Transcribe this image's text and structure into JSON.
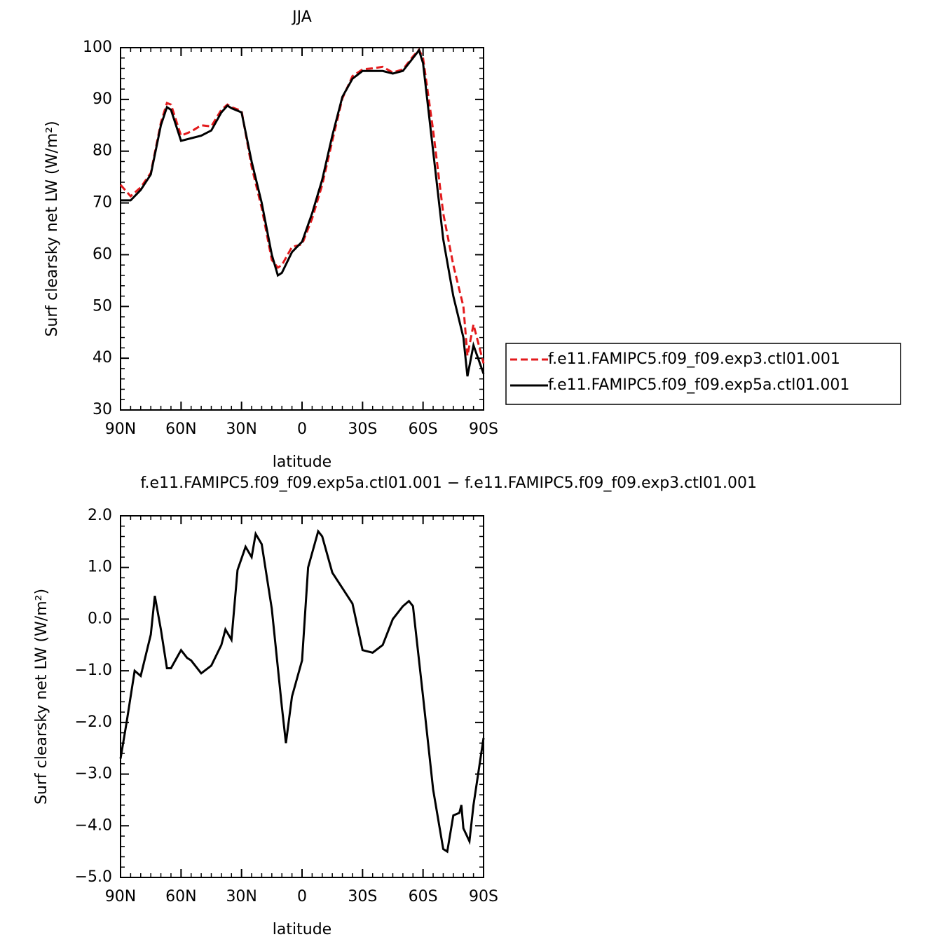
{
  "chart_data": [
    {
      "type": "line",
      "title": "JJA",
      "xlabel": "latitude",
      "ylabel": "Surf clearsky net LW (W/m²)",
      "x": [
        90,
        85,
        80,
        75,
        70,
        67,
        65,
        60,
        55,
        50,
        45,
        40,
        37,
        35,
        30,
        25,
        20,
        15,
        12,
        10,
        5,
        0,
        -5,
        -10,
        -15,
        -20,
        -25,
        -30,
        -35,
        -40,
        -45,
        -50,
        -55,
        -58,
        -60,
        -65,
        -70,
        -75,
        -80,
        -82,
        -85,
        -90
      ],
      "series": [
        {
          "name": "f.e11.FAMIPC5.f09_f09.exp3.ctl01.001",
          "color": "#e31a1c",
          "dash": true,
          "values": [
            73.5,
            71.3,
            73,
            75.8,
            85.5,
            89.3,
            89,
            83,
            83.8,
            85,
            84.8,
            88,
            89,
            88.5,
            87.8,
            77,
            69,
            59,
            57.5,
            58,
            61.5,
            62,
            67,
            73.5,
            82,
            90.2,
            94.5,
            95.8,
            96,
            96.3,
            95.2,
            95.8,
            98.3,
            99.6,
            98,
            84,
            68,
            58,
            50,
            40.5,
            46.5,
            39
          ]
        },
        {
          "name": "f.e11.FAMIPC5.f09_f09.exp5a.ctl01.001",
          "color": "#000000",
          "dash": false,
          "values": [
            70.5,
            70.5,
            72.5,
            75.5,
            85,
            88.5,
            88,
            82,
            82.5,
            83,
            84,
            87.5,
            88.8,
            88.3,
            87.5,
            78,
            70,
            60,
            56,
            56.5,
            60.5,
            62.5,
            68,
            74.5,
            83,
            90.5,
            94,
            95.5,
            95.5,
            95.5,
            95,
            95.5,
            98,
            99.5,
            97,
            80,
            63,
            52,
            44,
            36.5,
            42.5,
            37
          ]
        }
      ],
      "xlim": [
        90,
        -90
      ],
      "ylim": [
        30,
        100
      ],
      "xticks": [
        {
          "value": 90,
          "label": "90N"
        },
        {
          "value": 60,
          "label": "60N"
        },
        {
          "value": 30,
          "label": "30N"
        },
        0,
        {
          "value": -30,
          "label": "30S"
        },
        {
          "value": -60,
          "label": "60S"
        },
        {
          "value": -90,
          "label": "90S"
        }
      ],
      "yticks": [
        30,
        40,
        50,
        60,
        70,
        80,
        90,
        100
      ],
      "legend": "outside-right"
    },
    {
      "type": "line",
      "title": "f.e11.FAMIPC5.f09_f09.exp5a.ctl01.001 − f.e11.FAMIPC5.f09_f09.exp3.ctl01.001",
      "xlabel": "latitude",
      "ylabel": "Surf clearsky net LW (W/m²)",
      "x": [
        90,
        87,
        83,
        80,
        75,
        73,
        70,
        67,
        65,
        60,
        57,
        55,
        50,
        45,
        40,
        38,
        35,
        32,
        28,
        25,
        23,
        20,
        15,
        10,
        8,
        5,
        0,
        -3,
        -8,
        -10,
        -15,
        -20,
        -25,
        -30,
        -35,
        -40,
        -45,
        -50,
        -53,
        -55,
        -60,
        -65,
        -70,
        -72,
        -75,
        -78,
        -79,
        -80,
        -83,
        -85,
        -90
      ],
      "series": [
        {
          "color": "#000000",
          "dash": false,
          "values": [
            -2.7,
            -2.0,
            -1.0,
            -1.1,
            -0.3,
            0.45,
            -0.2,
            -0.95,
            -0.95,
            -0.6,
            -0.75,
            -0.8,
            -1.05,
            -0.9,
            -0.5,
            -0.2,
            -0.4,
            0.95,
            1.4,
            1.2,
            1.65,
            1.45,
            0.2,
            -1.7,
            -2.4,
            -1.5,
            -0.8,
            1.0,
            1.7,
            1.6,
            0.9,
            0.6,
            0.3,
            -0.6,
            -0.65,
            -0.5,
            0.0,
            0.25,
            0.35,
            0.25,
            -1.5,
            -3.3,
            -4.45,
            -4.5,
            -3.8,
            -3.75,
            -3.6,
            -4.05,
            -4.3,
            -3.6,
            -2.3
          ]
        }
      ],
      "xlim": [
        90,
        -90
      ],
      "ylim": [
        -5,
        2
      ],
      "xticks": [
        {
          "value": 90,
          "label": "90N"
        },
        {
          "value": 60,
          "label": "60N"
        },
        {
          "value": 30,
          "label": "30N"
        },
        0,
        {
          "value": -30,
          "label": "30S"
        },
        {
          "value": -60,
          "label": "60S"
        },
        {
          "value": -90,
          "label": "90S"
        }
      ],
      "yticks": [
        {
          "value": -5,
          "label": "−5.0"
        },
        {
          "value": -4,
          "label": "−4.0"
        },
        {
          "value": -3,
          "label": "−3.0"
        },
        {
          "value": -2,
          "label": "−2.0"
        },
        {
          "value": -1,
          "label": "−1.0"
        },
        {
          "value": 0,
          "label": "0.0"
        },
        {
          "value": 1,
          "label": "1.0"
        },
        {
          "value": 2,
          "label": "2.0"
        }
      ]
    }
  ]
}
